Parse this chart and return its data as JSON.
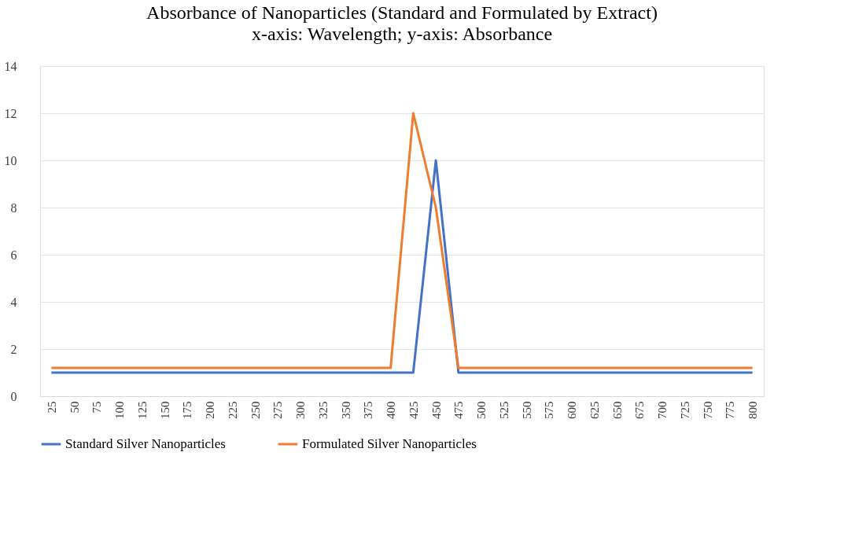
{
  "chart_data": {
    "type": "line",
    "title": "Absorbance of Nanoparticles (Standard and Formulated by Extract)",
    "subtitle": "x-axis: Wavelength;     y-axis: Absorbance",
    "categories": [
      "25",
      "50",
      "75",
      "100",
      "125",
      "150",
      "175",
      "200",
      "225",
      "250",
      "275",
      "300",
      "325",
      "350",
      "375",
      "400",
      "425",
      "450",
      "475",
      "500",
      "525",
      "550",
      "575",
      "600",
      "625",
      "650",
      "675",
      "700",
      "725",
      "750",
      "775",
      "800"
    ],
    "series": [
      {
        "name": "Standard Silver Nanoparticles",
        "color": "#4472c4",
        "values": [
          1,
          1,
          1,
          1,
          1,
          1,
          1,
          1,
          1,
          1,
          1,
          1,
          1,
          1,
          1,
          1,
          1,
          10,
          1,
          1,
          1,
          1,
          1,
          1,
          1,
          1,
          1,
          1,
          1,
          1,
          1,
          1
        ]
      },
      {
        "name": "Formulated Silver Nanoparticles",
        "color": "#ed7d31",
        "values": [
          1.2,
          1.2,
          1.2,
          1.2,
          1.2,
          1.2,
          1.2,
          1.2,
          1.2,
          1.2,
          1.2,
          1.2,
          1.2,
          1.2,
          1.2,
          1.2,
          12,
          8,
          1.2,
          1.2,
          1.2,
          1.2,
          1.2,
          1.2,
          1.2,
          1.2,
          1.2,
          1.2,
          1.2,
          1.2,
          1.2,
          1.2
        ]
      }
    ],
    "ylim": [
      0,
      14
    ],
    "yticks": [
      0,
      2,
      4,
      6,
      8,
      10,
      12,
      14
    ],
    "grid": "y",
    "legend": "bottom",
    "marker": "none",
    "line_style": "solid"
  }
}
